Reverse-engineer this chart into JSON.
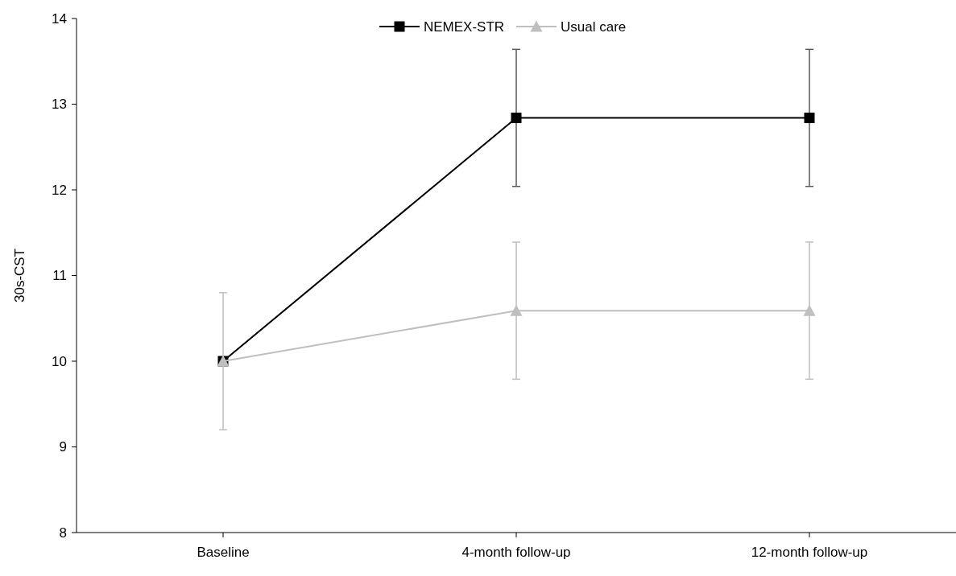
{
  "chart_data": {
    "type": "line",
    "ylabel": "30s-CST",
    "categories": [
      "Baseline",
      "4-month follow-up",
      "12-month follow-up"
    ],
    "series": [
      {
        "name": "NEMEX-STR",
        "color": "#000000",
        "values": [
          10,
          12.84,
          12.84
        ],
        "errors": [
          null,
          0.8,
          0.8
        ],
        "marker": "square"
      },
      {
        "name": "Usual care",
        "color": "#bfbfbf",
        "values": [
          10,
          10.59,
          10.59
        ],
        "errors": [
          0.8,
          0.8,
          0.8
        ],
        "marker": "triangle"
      }
    ],
    "ylim": [
      8,
      14
    ],
    "yticks": [
      8,
      9,
      10,
      11,
      12,
      13,
      14
    ],
    "grid": false,
    "legend": "top",
    "line_style": "solid"
  }
}
